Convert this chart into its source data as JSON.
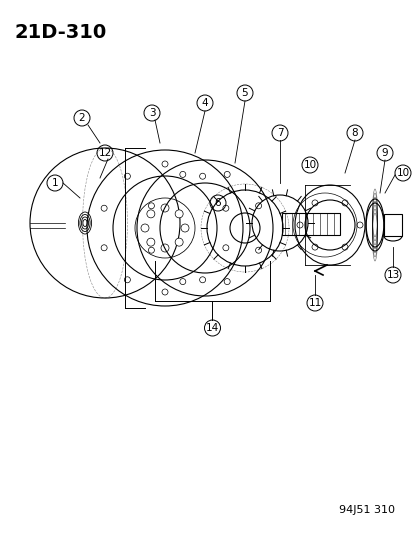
{
  "title": "21D-310",
  "footer": "94J51 310",
  "bg_color": "#ffffff",
  "line_color": "#000000",
  "title_fontsize": 14,
  "footer_fontsize": 8,
  "label_fontsize": 7.5
}
